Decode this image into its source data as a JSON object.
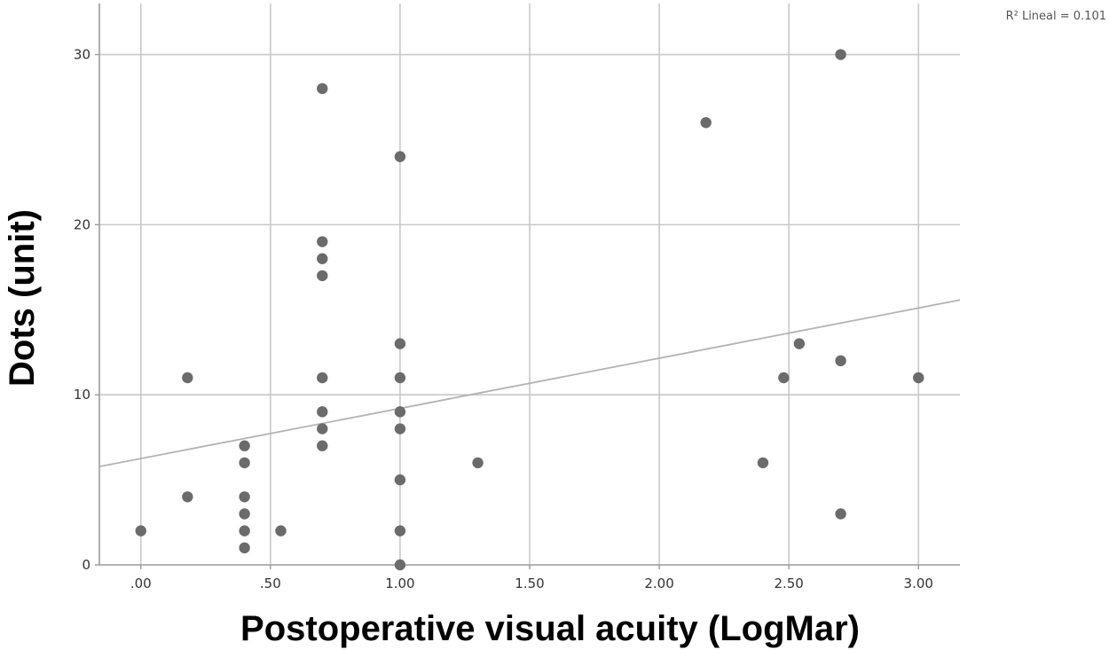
{
  "chart_data": {
    "type": "scatter",
    "xlabel": "Postoperative visual acuity (LogMar)",
    "ylabel": "Dots (unit)",
    "annotation": "R² Lineal = 0.101",
    "xlim": [
      -0.16,
      3.16
    ],
    "ylim": [
      0,
      33
    ],
    "x_ticks": [
      0,
      0.5,
      1.0,
      1.5,
      2.0,
      2.5,
      3.0
    ],
    "x_tick_labels": [
      ".00",
      ".50",
      "1.00",
      "1.50",
      "2.00",
      "2.50",
      "3.00"
    ],
    "y_ticks": [
      0,
      10,
      20,
      30
    ],
    "y_tick_labels": [
      "0",
      "10",
      "20",
      "30"
    ],
    "grid": true,
    "points": [
      {
        "x": 0.0,
        "y": 2
      },
      {
        "x": 0.18,
        "y": 11
      },
      {
        "x": 0.18,
        "y": 4
      },
      {
        "x": 0.4,
        "y": 7
      },
      {
        "x": 0.4,
        "y": 6
      },
      {
        "x": 0.4,
        "y": 4
      },
      {
        "x": 0.4,
        "y": 3
      },
      {
        "x": 0.4,
        "y": 2
      },
      {
        "x": 0.4,
        "y": 1
      },
      {
        "x": 0.54,
        "y": 2
      },
      {
        "x": 0.7,
        "y": 28
      },
      {
        "x": 0.7,
        "y": 19
      },
      {
        "x": 0.7,
        "y": 18
      },
      {
        "x": 0.7,
        "y": 17
      },
      {
        "x": 0.7,
        "y": 11
      },
      {
        "x": 0.7,
        "y": 9
      },
      {
        "x": 0.7,
        "y": 8
      },
      {
        "x": 0.7,
        "y": 7
      },
      {
        "x": 1.0,
        "y": 24
      },
      {
        "x": 1.0,
        "y": 13
      },
      {
        "x": 1.0,
        "y": 11
      },
      {
        "x": 1.0,
        "y": 9
      },
      {
        "x": 1.0,
        "y": 8
      },
      {
        "x": 1.0,
        "y": 5
      },
      {
        "x": 1.0,
        "y": 2
      },
      {
        "x": 1.0,
        "y": 0
      },
      {
        "x": 1.3,
        "y": 6
      },
      {
        "x": 2.18,
        "y": 26
      },
      {
        "x": 2.4,
        "y": 6
      },
      {
        "x": 2.48,
        "y": 11
      },
      {
        "x": 2.54,
        "y": 13
      },
      {
        "x": 2.7,
        "y": 30
      },
      {
        "x": 2.7,
        "y": 12
      },
      {
        "x": 2.7,
        "y": 3
      },
      {
        "x": 3.0,
        "y": 11
      }
    ],
    "fit_line": {
      "type": "linear",
      "intercept": 6.25,
      "slope": 2.95
    },
    "colors": {
      "point": "#6b6b6b",
      "fit_line": "#b3b3b3",
      "grid": "#c8c8c8",
      "axis": "#9a9a9a"
    }
  }
}
